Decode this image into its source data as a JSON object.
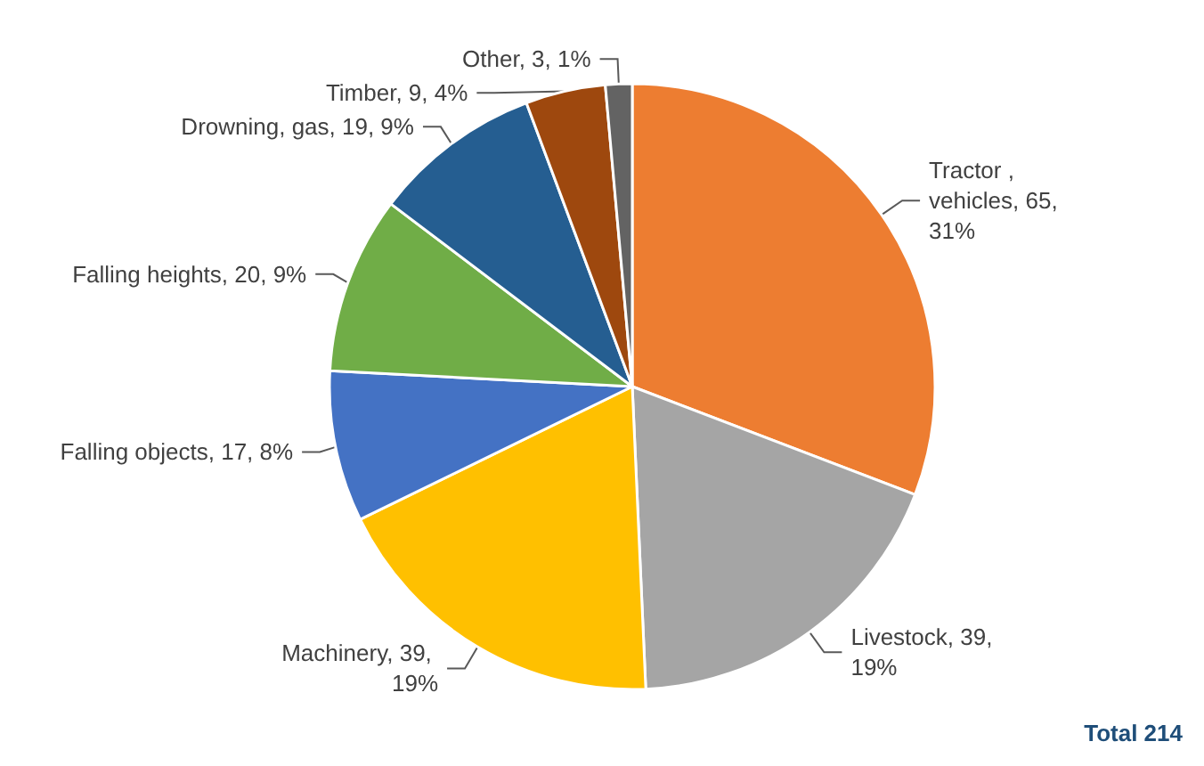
{
  "chart_data": {
    "type": "pie",
    "categories": [
      "Tractor , vehicles",
      "Livestock",
      "Machinery",
      "Falling objects",
      "Falling heights",
      "Drowning, gas",
      "Timber",
      "Other"
    ],
    "values": [
      65,
      39,
      39,
      17,
      20,
      19,
      9,
      3
    ],
    "value_labels": [
      "65, 31%",
      "39, 19%",
      "39, 19%",
      "17, 8%",
      "20, 9%",
      "19, 9%",
      "9, 4%",
      "3, 1%"
    ],
    "colors": [
      "#ed7d31",
      "#a5a5a5",
      "#ffc000",
      "#4472c4",
      "#70ad47",
      "#255e91",
      "#9e480e",
      "#636363"
    ],
    "annotations": [
      "Total 214"
    ],
    "legend": false
  }
}
